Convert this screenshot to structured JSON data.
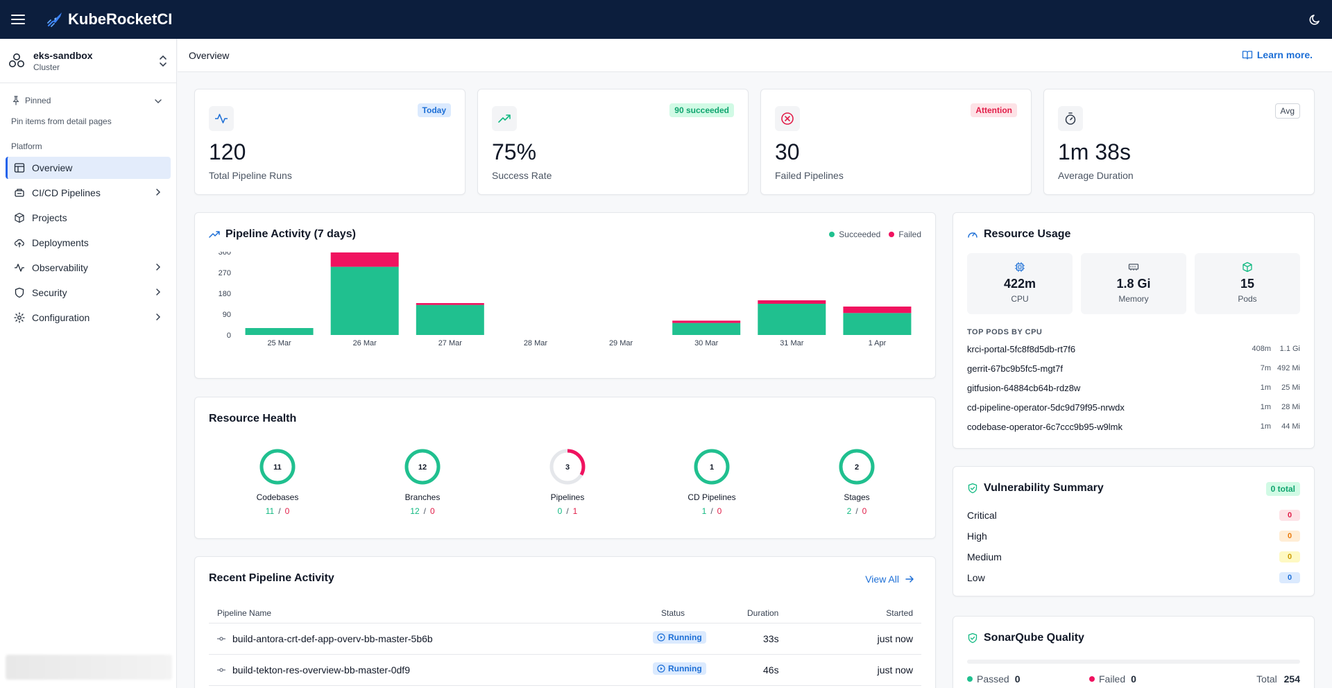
{
  "app": {
    "name": "KubeRocketCI"
  },
  "cluster": {
    "name": "eks-sandbox",
    "type": "Cluster"
  },
  "sidebar": {
    "pinned_label": "Pinned",
    "pinned_hint": "Pin items from detail pages",
    "section": "Platform",
    "items": [
      {
        "label": "Overview",
        "icon": "layout-icon",
        "active": true
      },
      {
        "label": "CI/CD Pipelines",
        "icon": "pipeline-icon",
        "expandable": true
      },
      {
        "label": "Projects",
        "icon": "box-icon"
      },
      {
        "label": "Deployments",
        "icon": "cloud-upload-icon"
      },
      {
        "label": "Observability",
        "icon": "activity-icon",
        "expandable": true
      },
      {
        "label": "Security",
        "icon": "shield-icon",
        "expandable": true
      },
      {
        "label": "Configuration",
        "icon": "gear-icon",
        "expandable": true
      }
    ]
  },
  "page": {
    "title": "Overview",
    "learn_more": "Learn more."
  },
  "stats": [
    {
      "value": "120",
      "label": "Total Pipeline Runs",
      "badge": "Today",
      "badge_style": "blue",
      "icon": "activity-icon"
    },
    {
      "value": "75%",
      "label": "Success Rate",
      "badge": "90 succeeded",
      "badge_style": "green",
      "icon": "trending-up-icon"
    },
    {
      "value": "30",
      "label": "Failed Pipelines",
      "badge": "Attention",
      "badge_style": "red",
      "icon": "x-circle-icon"
    },
    {
      "value": "1m 38s",
      "label": "Average Duration",
      "badge": "Avg",
      "badge_style": "outline",
      "icon": "timer-icon"
    }
  ],
  "activity": {
    "title": "Pipeline Activity (7 days)",
    "legend": {
      "succeeded": "Succeeded",
      "failed": "Failed"
    }
  },
  "chart_data": {
    "type": "bar",
    "stacked": true,
    "categories": [
      "25 Mar",
      "26 Mar",
      "27 Mar",
      "28 Mar",
      "29 Mar",
      "30 Mar",
      "31 Mar",
      "1 Apr"
    ],
    "series": [
      {
        "name": "Succeeded",
        "color": "#20c08f",
        "values": [
          30,
          295,
          130,
          0,
          0,
          52,
          135,
          95
        ]
      },
      {
        "name": "Failed",
        "color": "#f0125f",
        "values": [
          0,
          62,
          8,
          0,
          0,
          10,
          15,
          28
        ]
      }
    ],
    "yticks": [
      "0",
      "90",
      "180",
      "270",
      "360"
    ],
    "ylim": [
      0,
      360
    ]
  },
  "health": {
    "title": "Resource Health",
    "items": [
      {
        "value": "11",
        "label": "Codebases",
        "ok": "11",
        "bad": "0",
        "ok_frac": 1.0
      },
      {
        "value": "12",
        "label": "Branches",
        "ok": "12",
        "bad": "0",
        "ok_frac": 1.0
      },
      {
        "value": "3",
        "label": "Pipelines",
        "ok": "0",
        "bad": "1",
        "ok_frac": 0.0,
        "bad_frac": 0.333
      },
      {
        "value": "1",
        "label": "CD Pipelines",
        "ok": "1",
        "bad": "0",
        "ok_frac": 1.0
      },
      {
        "value": "2",
        "label": "Stages",
        "ok": "2",
        "bad": "0",
        "ok_frac": 1.0
      }
    ]
  },
  "recent": {
    "title": "Recent Pipeline Activity",
    "view_all": "View All",
    "columns": [
      "Pipeline Name",
      "Status",
      "Duration",
      "Started"
    ],
    "rows": [
      {
        "name": "build-antora-crt-def-app-overv-bb-master-5b6b",
        "status": "Running",
        "duration": "33s",
        "started": "just now"
      },
      {
        "name": "build-tekton-res-overview-bb-master-0df9",
        "status": "Running",
        "duration": "46s",
        "started": "just now"
      }
    ]
  },
  "resources": {
    "title": "Resource Usage",
    "tiles": [
      {
        "value": "422m",
        "label": "CPU",
        "icon": "cpu-icon"
      },
      {
        "value": "1.8 Gi",
        "label": "Memory",
        "icon": "memory-icon"
      },
      {
        "value": "15",
        "label": "Pods",
        "icon": "package-icon"
      }
    ],
    "pods_header": "TOP PODS BY CPU",
    "pods": [
      {
        "name": "krci-portal-5fc8f8d5db-rt7f6",
        "cpu": "408m",
        "mem": "1.1 Gi"
      },
      {
        "name": "gerrit-67bc9b5fc5-mgt7f",
        "cpu": "7m",
        "mem": "492 Mi"
      },
      {
        "name": "gitfusion-64884cb64b-rdz8w",
        "cpu": "1m",
        "mem": "25 Mi"
      },
      {
        "name": "cd-pipeline-operator-5dc9d79f95-nrwdx",
        "cpu": "1m",
        "mem": "28 Mi"
      },
      {
        "name": "codebase-operator-6c7ccc9b95-w9lmk",
        "cpu": "1m",
        "mem": "44 Mi"
      }
    ]
  },
  "vulnerability": {
    "title": "Vulnerability Summary",
    "total_badge": "0 total",
    "rows": [
      {
        "label": "Critical",
        "count": "0",
        "bg": "#fde2e6",
        "fg": "#e11d48"
      },
      {
        "label": "High",
        "count": "0",
        "bg": "#ffedd5",
        "fg": "#ea7a0c"
      },
      {
        "label": "Medium",
        "count": "0",
        "bg": "#fef9c3",
        "fg": "#ca9a04"
      },
      {
        "label": "Low",
        "count": "0",
        "bg": "#dbeafe",
        "fg": "#1d6fd6"
      }
    ]
  },
  "sonar": {
    "title": "SonarQube Quality",
    "passed_label": "Passed",
    "passed": "0",
    "failed_label": "Failed",
    "failed": "0",
    "total_label": "Total",
    "total": "254"
  },
  "colors": {
    "brand": "#0c1e3d",
    "accent": "#1d6fd6",
    "success": "#20c08f",
    "danger": "#f0125f"
  }
}
